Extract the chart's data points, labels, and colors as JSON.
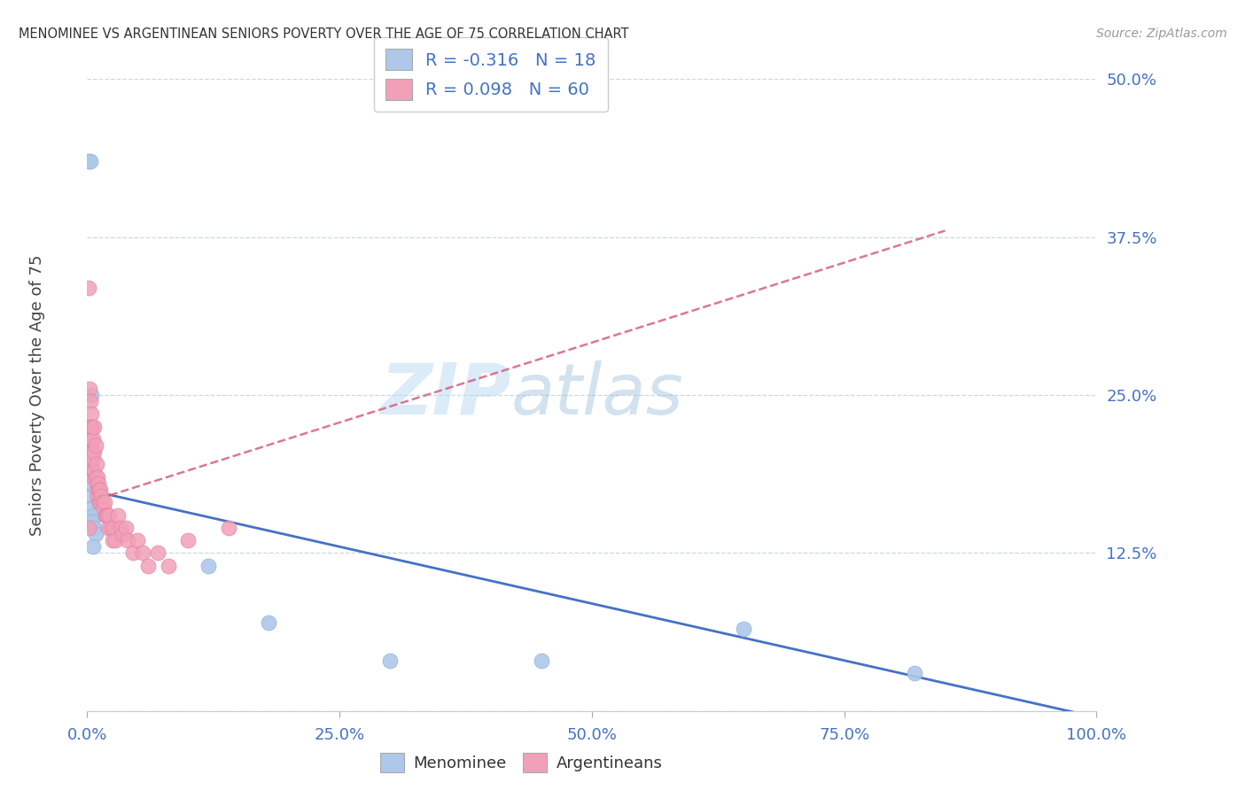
{
  "title": "MENOMINEE VS ARGENTINEAN SENIORS POVERTY OVER THE AGE OF 75 CORRELATION CHART",
  "source": "Source: ZipAtlas.com",
  "ylabel": "Seniors Poverty Over the Age of 75",
  "background_color": "#ffffff",
  "watermark_zip": "ZIP",
  "watermark_atlas": "atlas",
  "xlim": [
    0,
    1.0
  ],
  "ylim": [
    0,
    0.5
  ],
  "yticks": [
    0.0,
    0.125,
    0.25,
    0.375,
    0.5
  ],
  "ytick_labels": [
    "",
    "12.5%",
    "25.0%",
    "37.5%",
    "50.0%"
  ],
  "xticks": [
    0.0,
    0.25,
    0.5,
    0.75,
    1.0
  ],
  "xtick_labels": [
    "0.0%",
    "25.0%",
    "50.0%",
    "75.0%",
    "100.0%"
  ],
  "menominee_R": -0.316,
  "menominee_N": 18,
  "argentinean_R": 0.098,
  "argentinean_N": 60,
  "menominee_color": "#adc8e8",
  "argentinean_color": "#f2a0b8",
  "menominee_line_color": "#4472c4",
  "argentinean_line_color": "#d46080",
  "menominee_x": [
    0.001,
    0.003,
    0.002,
    0.004,
    0.003,
    0.005,
    0.004,
    0.006,
    0.005,
    0.007,
    0.008,
    0.006,
    0.12,
    0.18,
    0.3,
    0.45,
    0.65,
    0.82
  ],
  "menominee_y": [
    0.435,
    0.435,
    0.17,
    0.25,
    0.2,
    0.18,
    0.16,
    0.155,
    0.15,
    0.145,
    0.14,
    0.13,
    0.115,
    0.07,
    0.04,
    0.04,
    0.065,
    0.03
  ],
  "argentinean_x": [
    0.001,
    0.001,
    0.002,
    0.002,
    0.002,
    0.003,
    0.003,
    0.003,
    0.003,
    0.004,
    0.004,
    0.004,
    0.004,
    0.005,
    0.005,
    0.005,
    0.006,
    0.006,
    0.006,
    0.007,
    0.007,
    0.007,
    0.008,
    0.008,
    0.009,
    0.009,
    0.01,
    0.01,
    0.01,
    0.011,
    0.012,
    0.012,
    0.013,
    0.013,
    0.014,
    0.015,
    0.016,
    0.017,
    0.018,
    0.019,
    0.02,
    0.021,
    0.022,
    0.023,
    0.025,
    0.026,
    0.028,
    0.03,
    0.033,
    0.035,
    0.038,
    0.04,
    0.045,
    0.05,
    0.055,
    0.06,
    0.07,
    0.08,
    0.1,
    0.14
  ],
  "argentinean_y": [
    0.335,
    0.145,
    0.255,
    0.225,
    0.205,
    0.245,
    0.225,
    0.215,
    0.2,
    0.235,
    0.215,
    0.205,
    0.195,
    0.225,
    0.205,
    0.19,
    0.215,
    0.2,
    0.185,
    0.225,
    0.205,
    0.19,
    0.21,
    0.185,
    0.195,
    0.18,
    0.175,
    0.185,
    0.17,
    0.18,
    0.175,
    0.165,
    0.175,
    0.165,
    0.17,
    0.165,
    0.16,
    0.165,
    0.155,
    0.155,
    0.155,
    0.145,
    0.155,
    0.145,
    0.135,
    0.145,
    0.135,
    0.155,
    0.145,
    0.14,
    0.145,
    0.135,
    0.125,
    0.135,
    0.125,
    0.115,
    0.125,
    0.115,
    0.135,
    0.145
  ],
  "menominee_trend_x0": 0.0,
  "menominee_trend_y0": 0.175,
  "menominee_trend_x1": 1.0,
  "menominee_trend_y1": -0.005,
  "argentinean_trend_x0": 0.0,
  "argentinean_trend_y0": 0.165,
  "argentinean_trend_x1": 0.85,
  "argentinean_trend_y1": 0.38
}
